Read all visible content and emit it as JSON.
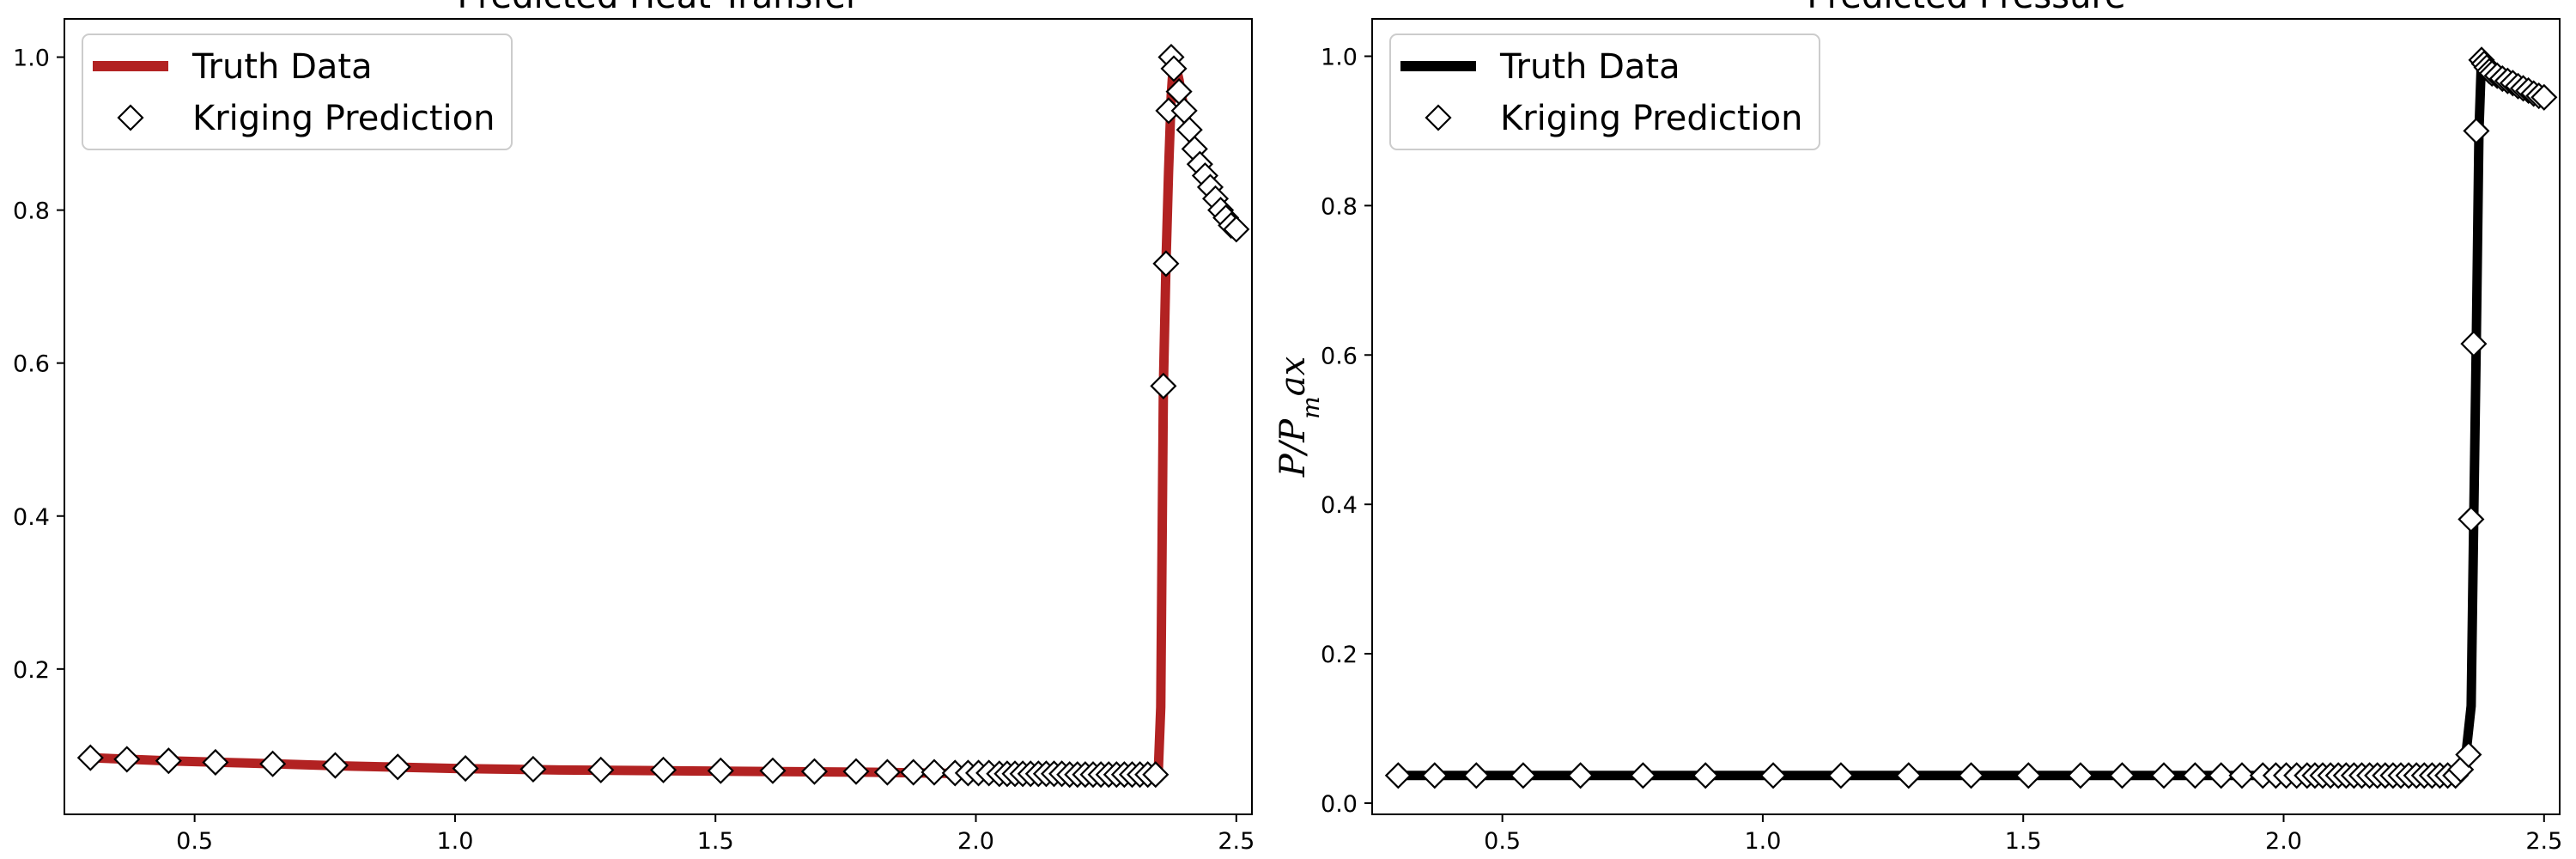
{
  "chart_data": [
    {
      "type": "scatter",
      "title": "Predicted Heat Transfer",
      "xlabel": "",
      "ylabel": "",
      "xlim": [
        0.25,
        2.53
      ],
      "ylim": [
        0.01,
        1.05
      ],
      "xticks": [
        0.5,
        1.0,
        1.5,
        2.0,
        2.5
      ],
      "yticks": [
        0.2,
        0.4,
        0.6,
        0.8,
        1.0
      ],
      "legend_position": "top-left",
      "grid": false,
      "series": [
        {
          "name": "Truth Data",
          "kind": "line",
          "color": "#b22222",
          "x": [
            0.3,
            0.45,
            0.6,
            0.8,
            1.0,
            1.2,
            1.4,
            1.6,
            1.8,
            2.0,
            2.2,
            2.35,
            2.355,
            2.36,
            2.365,
            2.37,
            2.375,
            2.38,
            2.39,
            2.4,
            2.42,
            2.44,
            2.46,
            2.48,
            2.5
          ],
          "y": [
            0.084,
            0.08,
            0.077,
            0.073,
            0.07,
            0.068,
            0.067,
            0.066,
            0.065,
            0.063,
            0.062,
            0.062,
            0.15,
            0.57,
            0.73,
            0.85,
            0.95,
            1.0,
            0.97,
            0.93,
            0.88,
            0.84,
            0.81,
            0.79,
            0.775
          ]
        },
        {
          "name": "Kriging Prediction",
          "kind": "marker",
          "marker": "diamond",
          "x": [
            0.3,
            0.37,
            0.45,
            0.54,
            0.65,
            0.77,
            0.89,
            1.02,
            1.15,
            1.28,
            1.4,
            1.51,
            1.61,
            1.69,
            1.77,
            1.83,
            1.88,
            1.92,
            1.96,
            1.985,
            2.005,
            2.025,
            2.045,
            2.06,
            2.075,
            2.09,
            2.105,
            2.12,
            2.135,
            2.15,
            2.165,
            2.18,
            2.195,
            2.21,
            2.225,
            2.24,
            2.255,
            2.27,
            2.285,
            2.3,
            2.315,
            2.33,
            2.345,
            2.36,
            2.365,
            2.37,
            2.375,
            2.38,
            2.39,
            2.4,
            2.41,
            2.42,
            2.43,
            2.44,
            2.45,
            2.46,
            2.47,
            2.48,
            2.49,
            2.5
          ],
          "y": [
            0.084,
            0.082,
            0.08,
            0.078,
            0.076,
            0.074,
            0.072,
            0.07,
            0.069,
            0.068,
            0.068,
            0.067,
            0.067,
            0.066,
            0.066,
            0.065,
            0.065,
            0.065,
            0.064,
            0.064,
            0.064,
            0.064,
            0.063,
            0.063,
            0.063,
            0.063,
            0.063,
            0.063,
            0.063,
            0.063,
            0.063,
            0.062,
            0.062,
            0.062,
            0.062,
            0.062,
            0.062,
            0.062,
            0.062,
            0.062,
            0.062,
            0.062,
            0.062,
            0.57,
            0.73,
            0.93,
            1.0,
            0.985,
            0.955,
            0.93,
            0.905,
            0.88,
            0.86,
            0.845,
            0.83,
            0.815,
            0.8,
            0.79,
            0.78,
            0.775
          ]
        }
      ]
    },
    {
      "type": "scatter",
      "title": "Predicted Pressure",
      "xlabel": "",
      "ylabel": "P/P_max",
      "ylabel_parts": [
        "P/P",
        "m",
        "ax"
      ],
      "xlim": [
        0.25,
        2.53
      ],
      "ylim": [
        -0.015,
        1.05
      ],
      "xticks": [
        0.5,
        1.0,
        1.5,
        2.0,
        2.5
      ],
      "yticks": [
        0.0,
        0.2,
        0.4,
        0.6,
        0.8,
        1.0
      ],
      "legend_position": "top-left",
      "grid": false,
      "series": [
        {
          "name": "Truth Data",
          "kind": "line",
          "color": "#000000",
          "x": [
            0.3,
            0.6,
            1.0,
            1.4,
            1.8,
            2.1,
            2.3,
            2.34,
            2.35,
            2.36,
            2.365,
            2.37,
            2.375,
            2.38,
            2.4,
            2.44,
            2.48,
            2.5
          ],
          "y": [
            0.037,
            0.037,
            0.037,
            0.037,
            0.037,
            0.037,
            0.037,
            0.045,
            0.065,
            0.13,
            0.38,
            0.62,
            0.9,
            1.0,
            0.985,
            0.97,
            0.955,
            0.945
          ]
        },
        {
          "name": "Kriging Prediction",
          "kind": "marker",
          "marker": "diamond",
          "x": [
            0.3,
            0.37,
            0.45,
            0.54,
            0.65,
            0.77,
            0.89,
            1.02,
            1.15,
            1.28,
            1.4,
            1.51,
            1.61,
            1.69,
            1.77,
            1.83,
            1.88,
            1.92,
            1.96,
            1.985,
            2.005,
            2.025,
            2.045,
            2.06,
            2.075,
            2.09,
            2.105,
            2.12,
            2.135,
            2.15,
            2.165,
            2.18,
            2.195,
            2.21,
            2.225,
            2.24,
            2.255,
            2.27,
            2.285,
            2.3,
            2.315,
            2.33,
            2.34,
            2.355,
            2.36,
            2.365,
            2.37,
            2.38,
            2.385,
            2.39,
            2.395,
            2.4,
            2.41,
            2.42,
            2.43,
            2.44,
            2.45,
            2.46,
            2.47,
            2.48,
            2.49,
            2.5
          ],
          "y": [
            0.037,
            0.037,
            0.037,
            0.037,
            0.037,
            0.037,
            0.037,
            0.037,
            0.037,
            0.037,
            0.037,
            0.037,
            0.037,
            0.037,
            0.037,
            0.037,
            0.037,
            0.037,
            0.037,
            0.037,
            0.037,
            0.037,
            0.037,
            0.037,
            0.037,
            0.037,
            0.037,
            0.037,
            0.037,
            0.037,
            0.037,
            0.037,
            0.037,
            0.037,
            0.037,
            0.037,
            0.037,
            0.037,
            0.037,
            0.037,
            0.037,
            0.037,
            0.045,
            0.065,
            0.38,
            0.615,
            0.9,
            0.995,
            0.99,
            0.985,
            0.98,
            0.977,
            0.974,
            0.97,
            0.967,
            0.964,
            0.96,
            0.957,
            0.954,
            0.95,
            0.947,
            0.945
          ]
        }
      ]
    }
  ]
}
